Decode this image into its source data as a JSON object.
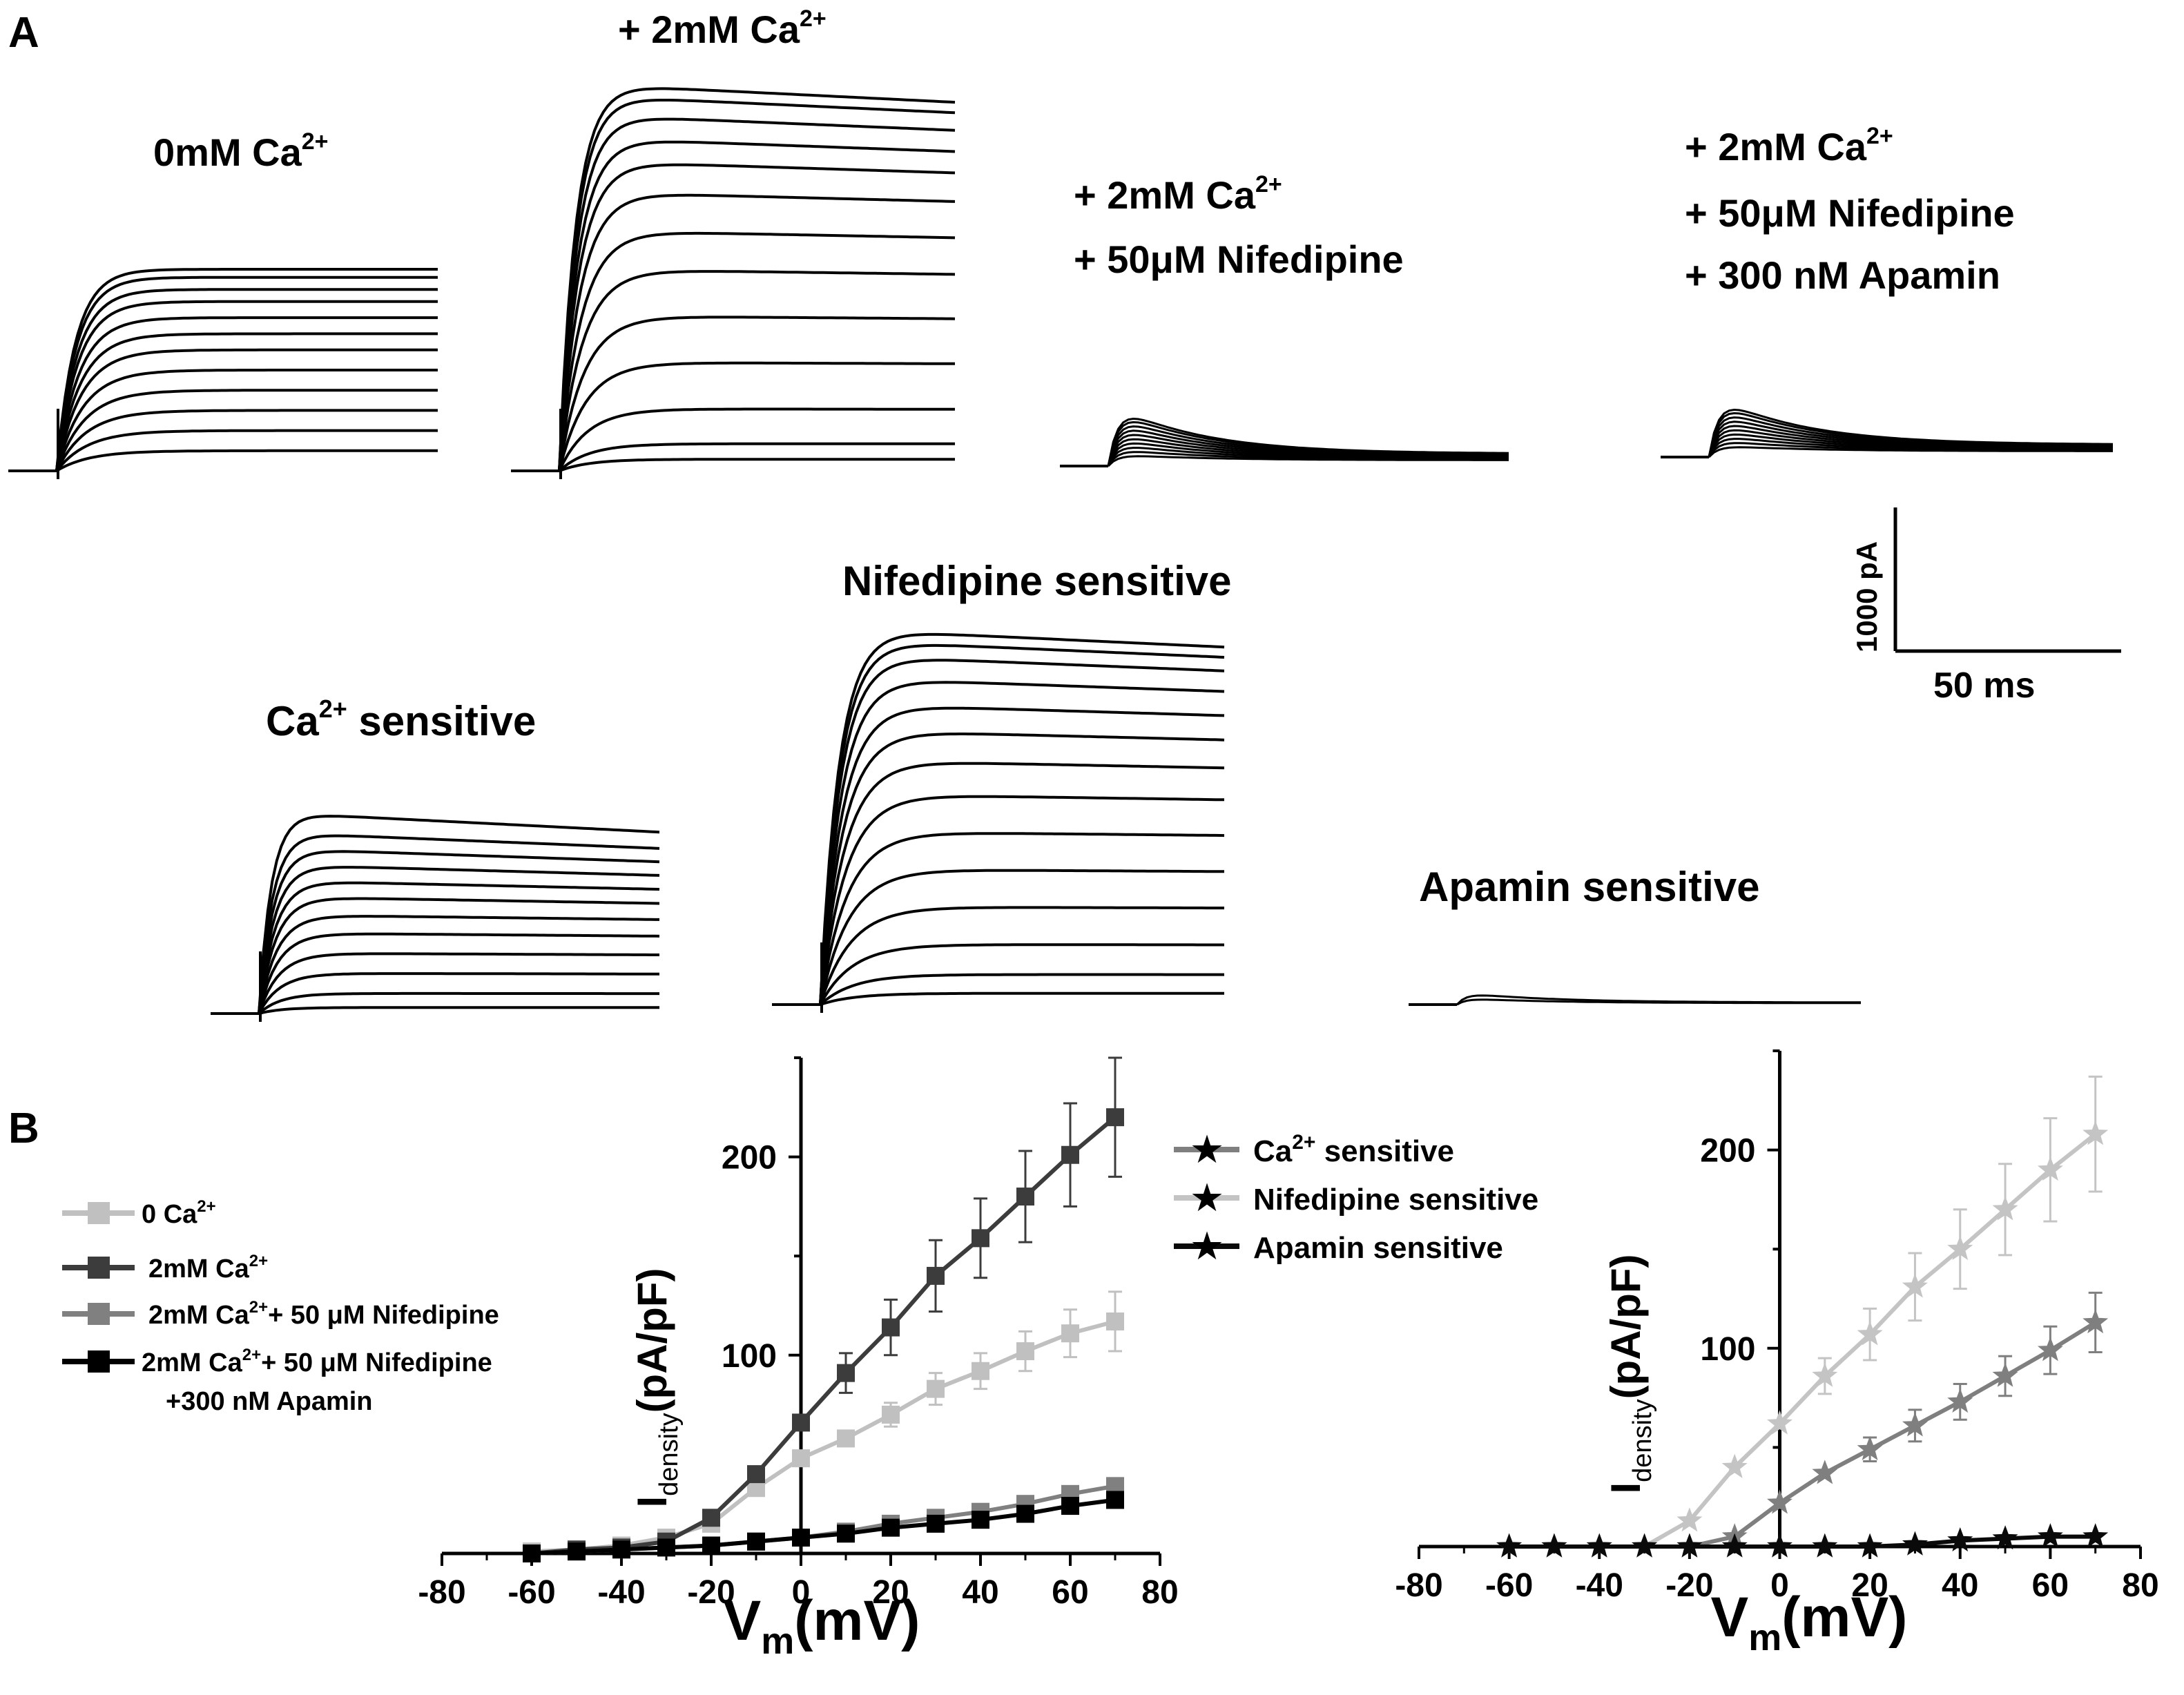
{
  "panel_labels": [
    "A",
    "B"
  ],
  "traces": {
    "zero_ca": {
      "title": "0mM Ca",
      "title_sup": "2+",
      "steady_levels": [
        0.1,
        0.2,
        0.3,
        0.4,
        0.5,
        0.6,
        0.68,
        0.76,
        0.84,
        0.9,
        0.96,
        1.0
      ],
      "decay": 0.0
    },
    "two_ca": {
      "title": "+ 2mM Ca",
      "title_sup": "2+",
      "steady_levels": [
        0.03,
        0.07,
        0.16,
        0.28,
        0.4,
        0.52,
        0.62,
        0.72,
        0.8,
        0.86,
        0.92,
        0.97,
        1.0
      ],
      "decay": 0.05
    },
    "nifedipine": {
      "title_line1": "+ 2mM Ca",
      "title_line1_sup": "2+",
      "title_line2": "+ 50μM Nifedipine",
      "transient_peaks": [
        0.12,
        0.22,
        0.32,
        0.42,
        0.52,
        0.62,
        0.72,
        0.82,
        0.92,
        1.0
      ]
    },
    "apamin": {
      "title_line1": "+ 2mM Ca",
      "title_line1_sup": "2+",
      "title_line2": "+ 50μM Nifedipine",
      "title_line3": "+ 300 nM Apamin",
      "transient_peaks": [
        0.12,
        0.22,
        0.32,
        0.42,
        0.52,
        0.62,
        0.72,
        0.82,
        0.92,
        1.0
      ]
    },
    "ca_sensitive": {
      "title": "Ca",
      "title_sup": "2+",
      "title_rest": " sensitive",
      "steady_levels": [
        0.03,
        0.1,
        0.2,
        0.3,
        0.4,
        0.49,
        0.58,
        0.66,
        0.74,
        0.82,
        0.9,
        1.0
      ],
      "decay": 0.1
    },
    "nif_sensitive": {
      "title": "Nifedipine sensitive",
      "steady_levels": [
        0.03,
        0.08,
        0.16,
        0.26,
        0.36,
        0.46,
        0.56,
        0.65,
        0.73,
        0.8,
        0.87,
        0.93,
        0.97,
        1.0
      ],
      "decay": 0.05
    },
    "apa_sensitive": {
      "title": "Apamin sensitive",
      "transient_peaks": [
        0.5,
        1.0
      ]
    }
  },
  "scale_bar": {
    "vertical_label": "1000 pA",
    "horizontal_label": "50 ms"
  },
  "colors": {
    "zero_ca": "#c0c0c0",
    "two_ca": "#3c3c3c",
    "nif": "#808080",
    "apa": "#000000",
    "ca_sensitive": "#7f7f7f",
    "nif_sensitive": "#c4c4c4",
    "apa_sensitive": "#0a0a0a",
    "trace": "#000000"
  },
  "chart_data": [
    {
      "type": "line",
      "xlabel": "V",
      "xlabel_sub": "m",
      "xlabel_rest": "(mV)",
      "ylabel": "I",
      "ylabel_sub": "density",
      "ylabel_rest": "(pA/pF)",
      "xlim": [
        -80,
        80
      ],
      "ylim": [
        0,
        250
      ],
      "xticks": [
        -80,
        -60,
        -40,
        -20,
        0,
        20,
        40,
        60,
        80
      ],
      "yticks": [
        100,
        200
      ],
      "legend_position": "left",
      "x": [
        -60,
        -50,
        -40,
        -30,
        -20,
        -10,
        0,
        10,
        20,
        30,
        40,
        50,
        60,
        70
      ],
      "series": [
        {
          "name": "0 Ca",
          "name_sup": "2+",
          "marker": "square",
          "color_key": "zero_ca",
          "values": [
            1,
            2,
            4,
            8,
            15,
            33,
            48,
            58,
            70,
            83,
            92,
            102,
            111,
            117
          ],
          "errors": [
            0,
            0,
            0,
            0,
            0,
            0,
            0,
            0,
            6,
            8,
            9,
            10,
            12,
            15
          ]
        },
        {
          "name": "2mM Ca",
          "name_sup": "2+",
          "marker": "square",
          "color_key": "two_ca",
          "values": [
            0,
            2,
            3,
            6,
            18,
            40,
            66,
            91,
            114,
            140,
            159,
            180,
            201,
            220
          ],
          "errors": [
            0,
            0,
            0,
            0,
            0,
            0,
            0,
            10,
            14,
            18,
            20,
            23,
            26,
            30
          ]
        },
        {
          "name": "2mM Ca",
          "name_sup": "2+",
          "name_rest": "+ 50 μM Nifedipine",
          "marker": "square",
          "color_key": "nif",
          "values": [
            0,
            1,
            2,
            3,
            4,
            6,
            8,
            11,
            15,
            18,
            21,
            25,
            30,
            34
          ],
          "errors": [
            0,
            0,
            0,
            0,
            0,
            0,
            0,
            0,
            0,
            0,
            0,
            0,
            0,
            0
          ]
        },
        {
          "name": "2mM Ca",
          "name_sup": "2+",
          "name_rest": "+ 50 μM Nifedipine",
          "name_line2": "+300 nM Apamin",
          "marker": "square",
          "color_key": "apa",
          "values": [
            0,
            1,
            2,
            3,
            4,
            6,
            8,
            10,
            13,
            15,
            17,
            20,
            24,
            27
          ],
          "errors": [
            0,
            0,
            0,
            0,
            0,
            0,
            0,
            0,
            0,
            0,
            0,
            0,
            0,
            0
          ]
        }
      ]
    },
    {
      "type": "line",
      "xlabel": "V",
      "xlabel_sub": "m",
      "xlabel_rest": "(mV)",
      "ylabel": "I",
      "ylabel_sub": "density",
      "ylabel_rest": "(pA/pF)",
      "xlim": [
        -80,
        80
      ],
      "ylim": [
        0,
        250
      ],
      "xticks": [
        -80,
        -60,
        -40,
        -20,
        0,
        20,
        40,
        60,
        80
      ],
      "yticks": [
        100,
        200
      ],
      "legend_position": "top-left",
      "x": [
        -60,
        -50,
        -40,
        -30,
        -20,
        -10,
        0,
        10,
        20,
        30,
        40,
        50,
        60,
        70
      ],
      "series": [
        {
          "name": "Ca",
          "name_sup": "2+",
          "name_rest": " sensitive",
          "marker": "star",
          "color_key": "ca_sensitive",
          "values": [
            0,
            0,
            0,
            0,
            0,
            5,
            22,
            37,
            49,
            61,
            73,
            86,
            99,
            113
          ],
          "errors": [
            0,
            0,
            0,
            0,
            0,
            0,
            0,
            0,
            6,
            8,
            9,
            10,
            12,
            15
          ]
        },
        {
          "name": "Nifedipine sensitive",
          "marker": "star",
          "color_key": "nif_sensitive",
          "values": [
            0,
            0,
            0,
            0,
            13,
            40,
            62,
            86,
            107,
            131,
            150,
            170,
            190,
            208
          ],
          "errors": [
            0,
            0,
            0,
            0,
            0,
            0,
            0,
            9,
            13,
            17,
            20,
            23,
            26,
            29
          ]
        },
        {
          "name": "Apamin sensitive",
          "marker": "star",
          "color_key": "apa_sensitive",
          "values": [
            0,
            0,
            0,
            0,
            0,
            0,
            0,
            0,
            0,
            1,
            3,
            4,
            5,
            5
          ],
          "errors": [
            0,
            0,
            0,
            0,
            0,
            0,
            0,
            0,
            0,
            0,
            0,
            0,
            0,
            0
          ]
        }
      ]
    }
  ]
}
